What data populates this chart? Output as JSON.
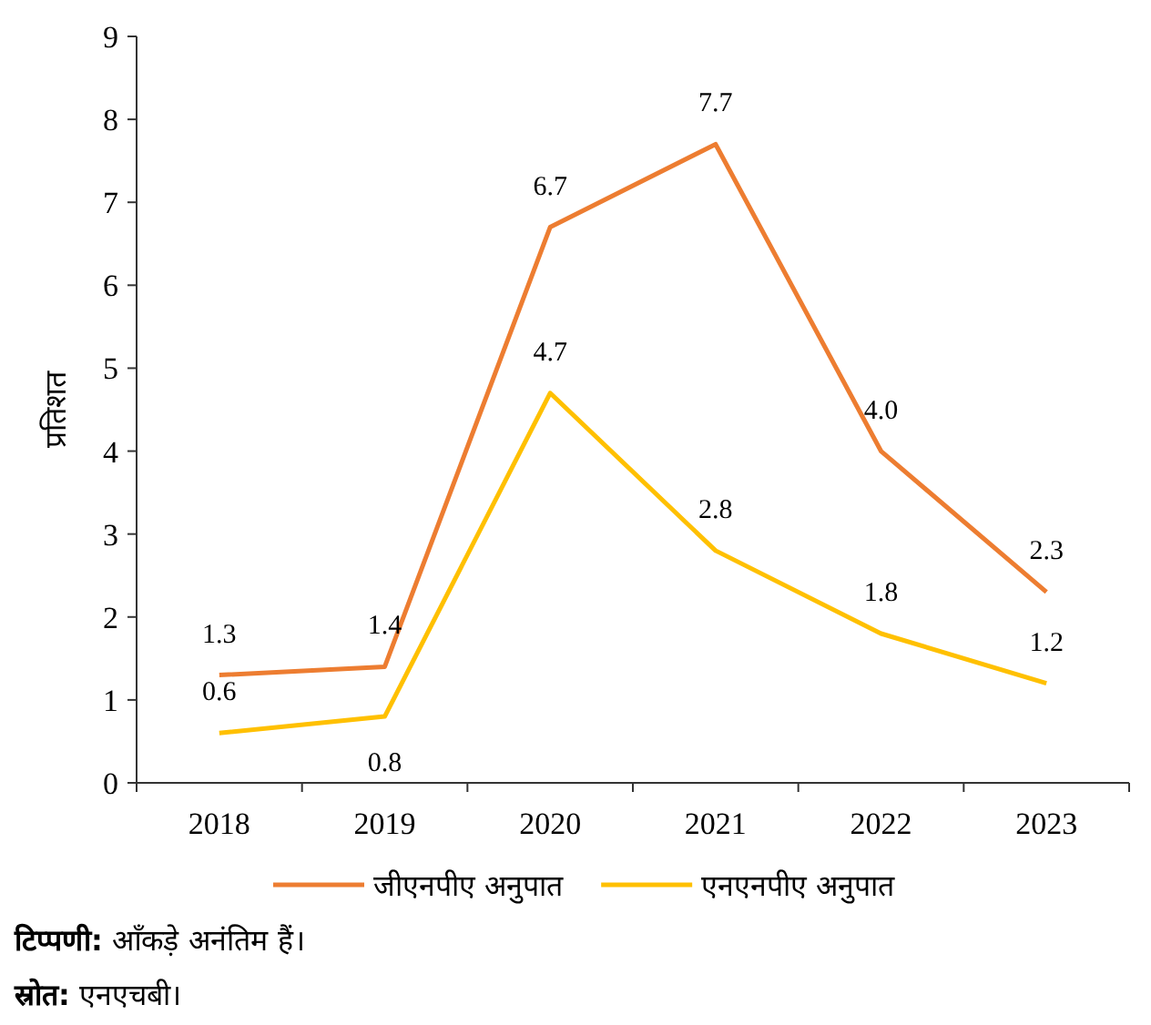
{
  "chart_data": {
    "type": "line",
    "categories": [
      "2018",
      "2019",
      "2020",
      "2021",
      "2022",
      "2023"
    ],
    "series": [
      {
        "name": "जीएनपीए अनुपात",
        "color": "#ed7d31",
        "values": [
          1.3,
          1.4,
          6.7,
          7.7,
          4.0,
          2.3
        ],
        "value_labels": [
          "1.3",
          "1.4",
          "6.7",
          "7.7",
          "4.0",
          "2.3"
        ]
      },
      {
        "name": "एनएनपीए अनुपात",
        "color": "#ffc000",
        "values": [
          0.6,
          0.8,
          4.7,
          2.8,
          1.8,
          1.2
        ],
        "value_labels": [
          "0.6",
          "0.8",
          "4.7",
          "2.8",
          "1.8",
          "1.2"
        ]
      }
    ],
    "ylabel": "प्रतिशत",
    "ylim": [
      0,
      9
    ],
    "yticks": [
      0,
      1,
      2,
      3,
      4,
      5,
      6,
      7,
      8,
      9
    ],
    "grid": false,
    "legend": "bottom",
    "marker": "none",
    "line_style": "solid",
    "annotations": [
      "टिप्पणी: आँकड़े अनंतिम हैं।",
      "स्रोत: एनएचबी।"
    ]
  }
}
